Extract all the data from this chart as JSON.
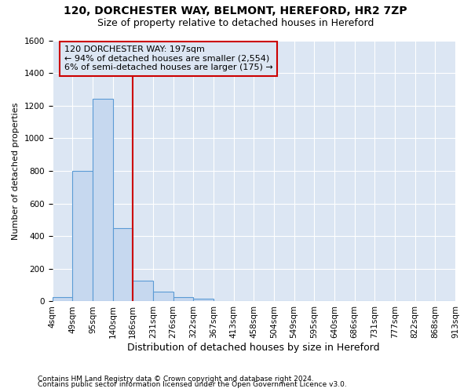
{
  "title1": "120, DORCHESTER WAY, BELMONT, HEREFORD, HR2 7ZP",
  "title2": "Size of property relative to detached houses in Hereford",
  "xlabel": "Distribution of detached houses by size in Hereford",
  "ylabel": "Number of detached properties",
  "footnote1": "Contains HM Land Registry data © Crown copyright and database right 2024.",
  "footnote2": "Contains public sector information licensed under the Open Government Licence v3.0.",
  "bin_labels": [
    "4sqm",
    "49sqm",
    "95sqm",
    "140sqm",
    "186sqm",
    "231sqm",
    "276sqm",
    "322sqm",
    "367sqm",
    "413sqm",
    "458sqm",
    "504sqm",
    "549sqm",
    "595sqm",
    "640sqm",
    "686sqm",
    "731sqm",
    "777sqm",
    "822sqm",
    "868sqm",
    "913sqm"
  ],
  "bar_values": [
    25,
    800,
    1240,
    450,
    125,
    60,
    28,
    18,
    0,
    0,
    0,
    0,
    0,
    0,
    0,
    0,
    0,
    0,
    0,
    0
  ],
  "bar_color": "#c6d8ef",
  "bar_edge_color": "#5b9bd5",
  "ylim": [
    0,
    1600
  ],
  "yticks": [
    0,
    200,
    400,
    600,
    800,
    1000,
    1200,
    1400,
    1600
  ],
  "vline_color": "#cc0000",
  "annotation_text": "120 DORCHESTER WAY: 197sqm\n← 94% of detached houses are smaller (2,554)\n6% of semi-detached houses are larger (175) →",
  "annotation_box_edgecolor": "#cc0000",
  "fig_background": "#ffffff",
  "axes_background": "#dce6f3",
  "grid_color": "#ffffff",
  "title1_fontsize": 10,
  "title2_fontsize": 9,
  "footnote_fontsize": 6.5,
  "xlabel_fontsize": 9,
  "ylabel_fontsize": 8,
  "tick_fontsize": 7.5,
  "annot_fontsize": 8
}
